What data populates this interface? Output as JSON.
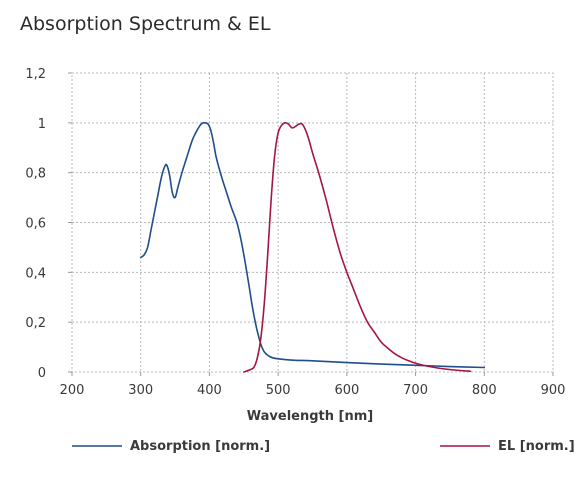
{
  "chart_data": {
    "type": "line",
    "title": "Absorption Spectrum & EL",
    "xlabel": "Wavelength [nm]",
    "ylabel": "",
    "xlim": [
      200,
      900
    ],
    "ylim": [
      0,
      1.2
    ],
    "xticks": [
      200,
      300,
      400,
      500,
      600,
      700,
      800,
      900
    ],
    "yticks": [
      0,
      0.2,
      0.4,
      0.6,
      0.8,
      1.0,
      1.2
    ],
    "ytick_labels": [
      "0",
      "0,2",
      "0,4",
      "0,6",
      "0,8",
      "1",
      "1,2"
    ],
    "grid": true,
    "legend": "bottom",
    "series": [
      {
        "name": "Absorption [norm.]",
        "color": "#1f4e8c",
        "x": [
          300,
          305,
          310,
          315,
          320,
          325,
          330,
          335,
          338,
          342,
          346,
          350,
          354,
          360,
          368,
          375,
          382,
          388,
          393,
          398,
          402,
          406,
          410,
          418,
          425,
          432,
          440,
          446,
          452,
          458,
          462,
          466,
          470,
          475,
          480,
          486,
          492,
          500,
          510,
          525,
          550,
          600,
          650,
          700,
          750,
          800
        ],
        "y": [
          0.46,
          0.47,
          0.5,
          0.57,
          0.64,
          0.71,
          0.78,
          0.825,
          0.83,
          0.79,
          0.72,
          0.7,
          0.74,
          0.8,
          0.87,
          0.93,
          0.97,
          0.995,
          1.0,
          0.995,
          0.97,
          0.92,
          0.86,
          0.78,
          0.72,
          0.66,
          0.6,
          0.53,
          0.44,
          0.34,
          0.27,
          0.21,
          0.16,
          0.11,
          0.08,
          0.065,
          0.057,
          0.053,
          0.05,
          0.047,
          0.045,
          0.038,
          0.032,
          0.027,
          0.022,
          0.018
        ]
      },
      {
        "name": "EL [norm.]",
        "color": "#a4173f",
        "x": [
          450,
          460,
          465,
          470,
          475,
          480,
          485,
          490,
          495,
          500,
          505,
          510,
          515,
          520,
          525,
          530,
          535,
          540,
          545,
          550,
          560,
          570,
          580,
          590,
          600,
          610,
          620,
          630,
          640,
          650,
          660,
          670,
          680,
          690,
          700,
          710,
          720,
          740,
          760,
          780
        ],
        "y": [
          0.0,
          0.01,
          0.02,
          0.06,
          0.14,
          0.28,
          0.48,
          0.7,
          0.87,
          0.96,
          0.99,
          1.0,
          0.995,
          0.98,
          0.985,
          0.995,
          0.995,
          0.97,
          0.93,
          0.88,
          0.79,
          0.69,
          0.58,
          0.48,
          0.4,
          0.33,
          0.26,
          0.2,
          0.16,
          0.12,
          0.095,
          0.073,
          0.057,
          0.045,
          0.035,
          0.028,
          0.022,
          0.013,
          0.007,
          0.003
        ]
      }
    ]
  }
}
